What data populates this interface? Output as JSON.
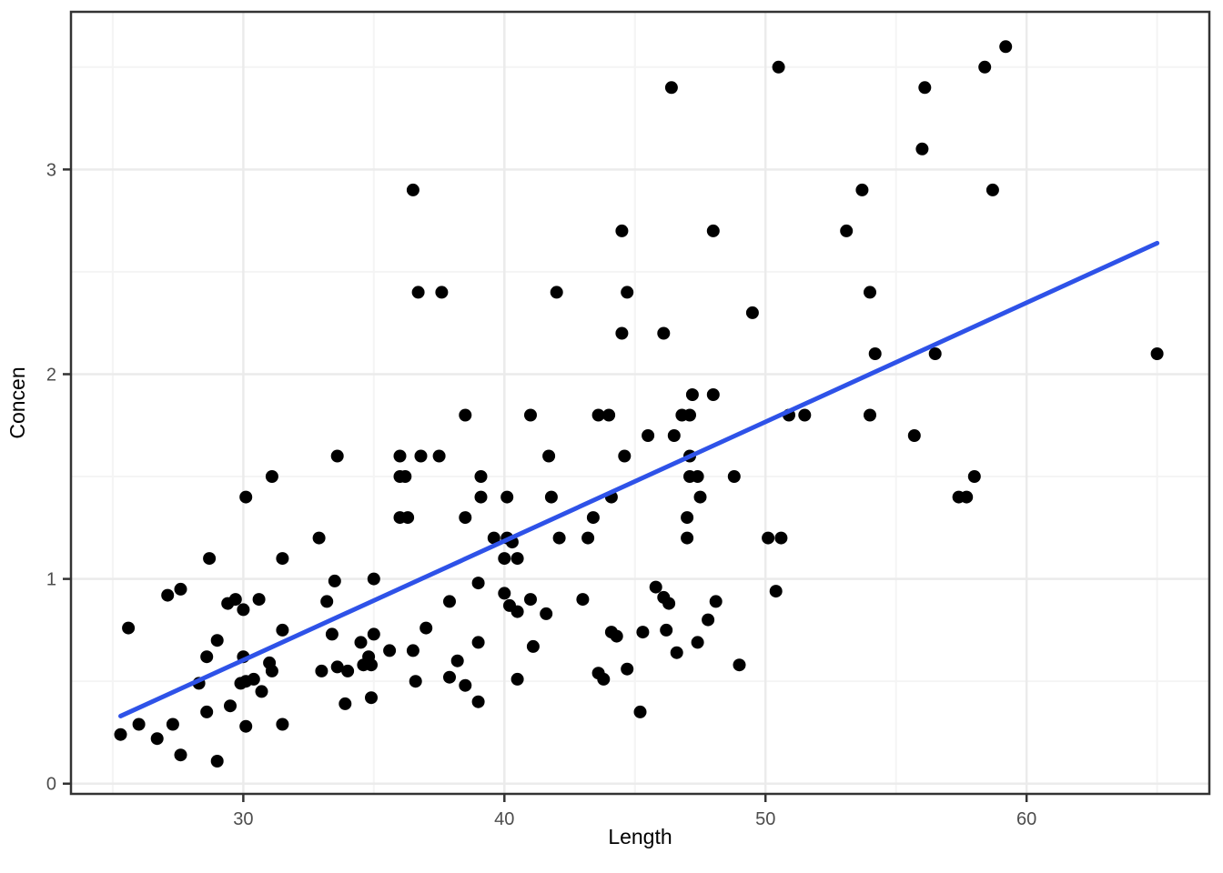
{
  "chart_data": {
    "type": "scatter",
    "title": "",
    "xlabel": "Length",
    "ylabel": "Concen",
    "x_ticks": [
      30,
      40,
      50,
      60
    ],
    "y_ticks": [
      0,
      1,
      2,
      3
    ],
    "x_minor_ticks": [
      25,
      35,
      45,
      55,
      65
    ],
    "y_minor_ticks": [
      0.5,
      1.5,
      2.5,
      3.5
    ],
    "xlim": [
      23.4,
      67.0
    ],
    "ylim": [
      -0.05,
      3.77
    ],
    "grid": "on",
    "legend": "none",
    "point_color": "#000000",
    "point_radius": 7,
    "line_color": "#2E52E8",
    "line_width": 5,
    "grid_major_color": "#EBEBEB",
    "grid_minor_color": "#F4F4F4",
    "panel_border_color": "#333333",
    "tick_color": "#333333",
    "tick_label_color": "#4d4d4d",
    "axis_title_color": "#000000",
    "background_color": "#FFFFFF",
    "trend_line": {
      "kind": "linear-fit",
      "x1": 25.3,
      "y1": 0.33,
      "x2": 65.0,
      "y2": 2.64
    },
    "points": [
      [
        36.5,
        2.9
      ],
      [
        36.7,
        2.4
      ],
      [
        37.6,
        2.4
      ],
      [
        50.5,
        3.5
      ],
      [
        46.4,
        3.4
      ],
      [
        44.5,
        2.7
      ],
      [
        48.0,
        2.7
      ],
      [
        42.0,
        2.4
      ],
      [
        44.7,
        2.4
      ],
      [
        49.5,
        2.3
      ],
      [
        44.5,
        2.2
      ],
      [
        46.1,
        2.2
      ],
      [
        47.2,
        1.9
      ],
      [
        48.0,
        1.9
      ],
      [
        59.2,
        3.6
      ],
      [
        58.4,
        3.5
      ],
      [
        56.1,
        3.4
      ],
      [
        56.0,
        3.1
      ],
      [
        53.7,
        2.9
      ],
      [
        58.7,
        2.9
      ],
      [
        53.1,
        2.7
      ],
      [
        54.0,
        2.4
      ],
      [
        54.2,
        2.1
      ],
      [
        56.5,
        2.1
      ],
      [
        65.0,
        2.1
      ],
      [
        33.6,
        1.6
      ],
      [
        36.0,
        1.6
      ],
      [
        36.8,
        1.6
      ],
      [
        37.5,
        1.6
      ],
      [
        31.1,
        1.5
      ],
      [
        36.0,
        1.5
      ],
      [
        36.2,
        1.5
      ],
      [
        30.1,
        1.4
      ],
      [
        36.0,
        1.3
      ],
      [
        36.3,
        1.3
      ],
      [
        32.9,
        1.2
      ],
      [
        28.7,
        1.1
      ],
      [
        31.5,
        1.1
      ],
      [
        35.0,
        1.0
      ],
      [
        33.5,
        0.99
      ],
      [
        33.2,
        0.89
      ],
      [
        38.5,
        1.8
      ],
      [
        41.0,
        1.8
      ],
      [
        43.6,
        1.8
      ],
      [
        44.0,
        1.8
      ],
      [
        46.8,
        1.8
      ],
      [
        47.1,
        1.8
      ],
      [
        50.9,
        1.8
      ],
      [
        51.5,
        1.8
      ],
      [
        45.5,
        1.7
      ],
      [
        46.5,
        1.7
      ],
      [
        41.7,
        1.6
      ],
      [
        44.6,
        1.6
      ],
      [
        47.1,
        1.6
      ],
      [
        39.1,
        1.5
      ],
      [
        47.1,
        1.5
      ],
      [
        47.4,
        1.5
      ],
      [
        48.8,
        1.5
      ],
      [
        39.1,
        1.4
      ],
      [
        40.1,
        1.4
      ],
      [
        41.8,
        1.4
      ],
      [
        44.1,
        1.4
      ],
      [
        47.5,
        1.4
      ],
      [
        38.5,
        1.3
      ],
      [
        43.4,
        1.3
      ],
      [
        47.0,
        1.3
      ],
      [
        39.6,
        1.2
      ],
      [
        40.1,
        1.2
      ],
      [
        40.3,
        1.18
      ],
      [
        42.1,
        1.2
      ],
      [
        43.2,
        1.2
      ],
      [
        47.0,
        1.2
      ],
      [
        50.1,
        1.2
      ],
      [
        50.6,
        1.2
      ],
      [
        40.0,
        1.1
      ],
      [
        40.5,
        1.1
      ],
      [
        39.0,
        0.98
      ],
      [
        45.8,
        0.96
      ],
      [
        40.0,
        0.93
      ],
      [
        50.4,
        0.94
      ],
      [
        37.9,
        0.89
      ],
      [
        46.1,
        0.91
      ],
      [
        46.3,
        0.88
      ],
      [
        40.2,
        0.87
      ],
      [
        40.5,
        0.84
      ],
      [
        41.0,
        0.9
      ],
      [
        41.6,
        0.83
      ],
      [
        48.1,
        0.89
      ],
      [
        43.0,
        0.9
      ],
      [
        47.8,
        0.8
      ],
      [
        44.1,
        0.74
      ],
      [
        44.3,
        0.72
      ],
      [
        45.3,
        0.74
      ],
      [
        46.2,
        0.75
      ],
      [
        39.0,
        0.69
      ],
      [
        47.4,
        0.69
      ],
      [
        41.1,
        0.67
      ],
      [
        46.6,
        0.64
      ],
      [
        38.2,
        0.6
      ],
      [
        49.0,
        0.58
      ],
      [
        43.6,
        0.54
      ],
      [
        43.8,
        0.51
      ],
      [
        44.7,
        0.56
      ],
      [
        40.5,
        0.51
      ],
      [
        37.9,
        0.52
      ],
      [
        38.5,
        0.48
      ],
      [
        39.0,
        0.4
      ],
      [
        45.2,
        0.35
      ],
      [
        54.0,
        1.8
      ],
      [
        55.7,
        1.7
      ],
      [
        58.0,
        1.5
      ],
      [
        57.4,
        1.4
      ],
      [
        57.7,
        1.4
      ],
      [
        27.1,
        0.92
      ],
      [
        27.6,
        0.95
      ],
      [
        29.4,
        0.88
      ],
      [
        29.7,
        0.9
      ],
      [
        30.0,
        0.85
      ],
      [
        30.6,
        0.9
      ],
      [
        25.6,
        0.76
      ],
      [
        29.0,
        0.7
      ],
      [
        31.5,
        0.75
      ],
      [
        28.6,
        0.62
      ],
      [
        30.0,
        0.62
      ],
      [
        31.0,
        0.59
      ],
      [
        31.1,
        0.55
      ],
      [
        29.9,
        0.49
      ],
      [
        30.1,
        0.5
      ],
      [
        30.4,
        0.51
      ],
      [
        30.7,
        0.45
      ],
      [
        28.3,
        0.49
      ],
      [
        27.3,
        0.29
      ],
      [
        28.6,
        0.35
      ],
      [
        29.5,
        0.38
      ],
      [
        30.1,
        0.28
      ],
      [
        31.5,
        0.29
      ],
      [
        25.3,
        0.24
      ],
      [
        26.0,
        0.29
      ],
      [
        26.7,
        0.22
      ],
      [
        27.6,
        0.14
      ],
      [
        29.0,
        0.11
      ],
      [
        33.4,
        0.73
      ],
      [
        34.5,
        0.69
      ],
      [
        35.0,
        0.73
      ],
      [
        37.0,
        0.76
      ],
      [
        35.6,
        0.65
      ],
      [
        36.5,
        0.65
      ],
      [
        34.8,
        0.62
      ],
      [
        34.9,
        0.58
      ],
      [
        34.6,
        0.58
      ],
      [
        33.0,
        0.55
      ],
      [
        33.6,
        0.57
      ],
      [
        34.0,
        0.55
      ],
      [
        36.6,
        0.5
      ],
      [
        33.9,
        0.39
      ],
      [
        34.9,
        0.42
      ]
    ]
  }
}
